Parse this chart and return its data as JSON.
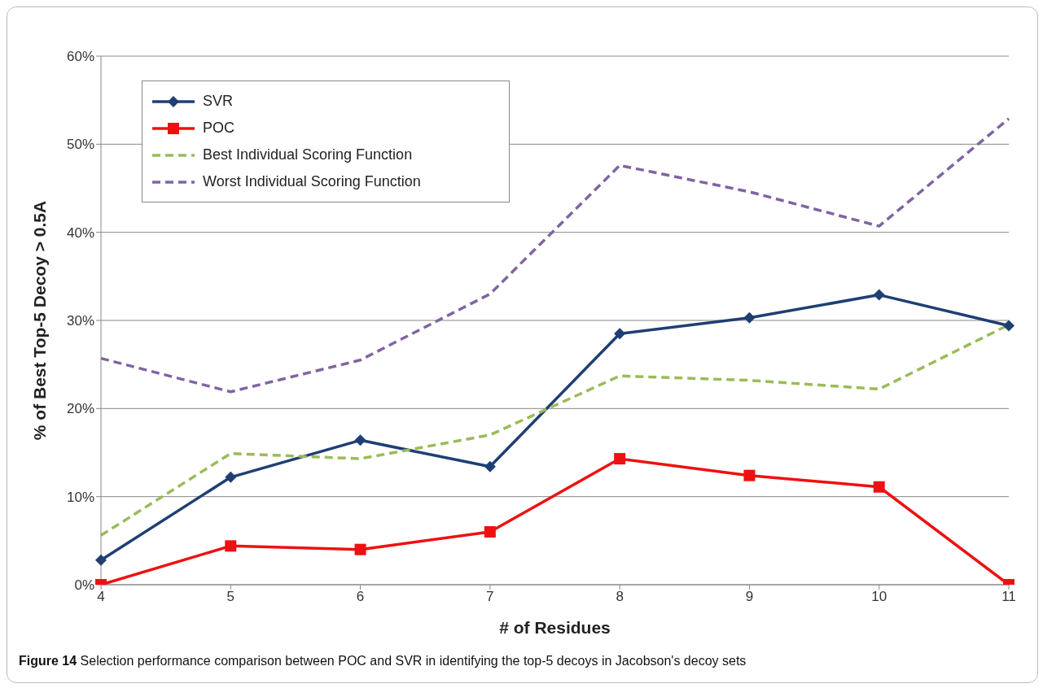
{
  "chart_data": {
    "type": "line",
    "xlabel": "# of Residues",
    "ylabel": "% of Best Top-5 Decoy > 0.5A",
    "categories": [
      "4",
      "5",
      "6",
      "7",
      "8",
      "9",
      "10",
      "11"
    ],
    "series": [
      {
        "name": "SVR",
        "color": "#1f3f73",
        "marker": "diamond",
        "line_style": "solid",
        "values": [
          2.8,
          12.2,
          16.4,
          13.4,
          28.5,
          30.3,
          32.9,
          29.4
        ]
      },
      {
        "name": "POC",
        "color": "#ee1111",
        "marker": "square",
        "line_style": "solid",
        "values": [
          0,
          4.4,
          4.0,
          6.0,
          14.3,
          12.4,
          11.1,
          0
        ]
      },
      {
        "name": "Best Individual Scoring Function",
        "color": "#9bbb59",
        "marker": "none",
        "line_style": "dashed",
        "values": [
          5.6,
          14.9,
          14.3,
          17.0,
          23.7,
          23.2,
          22.2,
          29.5
        ]
      },
      {
        "name": "Worst Individual Scoring Function",
        "color": "#8064a2",
        "marker": "none",
        "line_style": "dashed",
        "values": [
          25.7,
          21.9,
          25.5,
          33.0,
          47.6,
          44.6,
          40.7,
          52.9
        ]
      }
    ],
    "ylim": [
      0,
      60
    ],
    "yticks": [
      {
        "value": 0,
        "label": "0%"
      },
      {
        "value": 10,
        "label": "10%"
      },
      {
        "value": 20,
        "label": "20%"
      },
      {
        "value": 30,
        "label": "30%"
      },
      {
        "value": 40,
        "label": "40%"
      },
      {
        "value": 50,
        "label": "50%"
      },
      {
        "value": 60,
        "label": "60%"
      }
    ],
    "grid": "y",
    "legend": "top left",
    "annotations": [
      "Figure 14 Selection performance comparison between POC and SVR in identifying the top-5 decoys in Jacobson's decoy sets"
    ]
  }
}
